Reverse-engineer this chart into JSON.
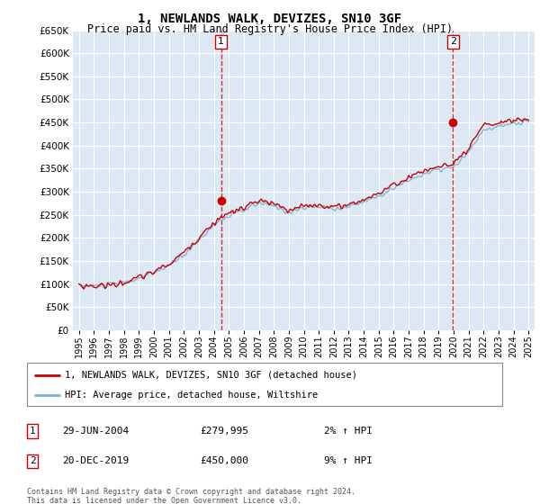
{
  "title": "1, NEWLANDS WALK, DEVIZES, SN10 3GF",
  "subtitle": "Price paid vs. HM Land Registry's House Price Index (HPI)",
  "legend_line1": "1, NEWLANDS WALK, DEVIZES, SN10 3GF (detached house)",
  "legend_line2": "HPI: Average price, detached house, Wiltshire",
  "sale1_date": "29-JUN-2004",
  "sale1_price": "£279,995",
  "sale1_hpi": "2% ↑ HPI",
  "sale2_date": "20-DEC-2019",
  "sale2_price": "£450,000",
  "sale2_hpi": "9% ↑ HPI",
  "footnote": "Contains HM Land Registry data © Crown copyright and database right 2024.\nThis data is licensed under the Open Government Licence v3.0.",
  "plot_bg_color": "#dce9f5",
  "grid_color": "#ffffff",
  "red_color": "#cc0000",
  "blue_color": "#7ab0d4",
  "sale1_x": 2004.49,
  "sale1_y": 279995,
  "sale2_x": 2019.96,
  "sale2_y": 450000,
  "ylim": [
    0,
    650000
  ],
  "yticks": [
    0,
    50000,
    100000,
    150000,
    200000,
    250000,
    300000,
    350000,
    400000,
    450000,
    500000,
    550000,
    600000,
    650000
  ],
  "xlim_left": 1994.6,
  "xlim_right": 2025.4,
  "xtick_years": [
    1995,
    1996,
    1997,
    1998,
    1999,
    2000,
    2001,
    2002,
    2003,
    2004,
    2005,
    2006,
    2007,
    2008,
    2009,
    2010,
    2011,
    2012,
    2013,
    2014,
    2015,
    2016,
    2017,
    2018,
    2019,
    2020,
    2021,
    2022,
    2023,
    2024,
    2025
  ]
}
